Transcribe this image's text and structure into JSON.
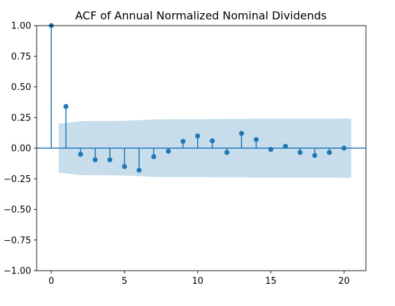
{
  "chart_data": {
    "type": "stem",
    "title": "ACF of Annual Normalized Nominal Dividends",
    "xlabel": "",
    "ylabel": "",
    "xlim": [
      -1,
      21.5
    ],
    "ylim": [
      -1.0,
      1.0
    ],
    "x_ticks": [
      0,
      5,
      10,
      15,
      20
    ],
    "y_ticks": [
      "1.00",
      "0.75",
      "0.50",
      "0.25",
      "0.00",
      "−0.25",
      "−0.50",
      "−0.75",
      "−1.00"
    ],
    "lags": [
      0,
      1,
      2,
      3,
      4,
      5,
      6,
      7,
      8,
      9,
      10,
      11,
      12,
      13,
      14,
      15,
      16,
      17,
      18,
      19,
      20
    ],
    "acf": [
      1.0,
      0.34,
      -0.05,
      -0.095,
      -0.095,
      -0.15,
      -0.18,
      -0.07,
      -0.025,
      0.055,
      0.1,
      0.06,
      -0.035,
      0.12,
      0.07,
      -0.01,
      0.015,
      -0.035,
      -0.06,
      -0.035,
      0.0
    ],
    "confidence_band": {
      "x": [
        0.5,
        1,
        2,
        3,
        4,
        5,
        6,
        7,
        8,
        9,
        10,
        11,
        12,
        13,
        14,
        15,
        16,
        17,
        18,
        19,
        20,
        20.5
      ],
      "upper": [
        0.2,
        0.205,
        0.22,
        0.221,
        0.222,
        0.224,
        0.228,
        0.235,
        0.235,
        0.236,
        0.236,
        0.238,
        0.238,
        0.239,
        0.24,
        0.24,
        0.24,
        0.24,
        0.241,
        0.241,
        0.242,
        0.242
      ],
      "lower": [
        -0.2,
        -0.205,
        -0.22,
        -0.221,
        -0.222,
        -0.224,
        -0.228,
        -0.235,
        -0.235,
        -0.236,
        -0.236,
        -0.238,
        -0.238,
        -0.239,
        -0.24,
        -0.24,
        -0.24,
        -0.24,
        -0.241,
        -0.241,
        -0.242,
        -0.242
      ]
    },
    "colors": {
      "stem": "#1f77b4",
      "band": "#1f77b4",
      "band_opacity": 0.25
    },
    "grid": false,
    "legend": "none"
  }
}
